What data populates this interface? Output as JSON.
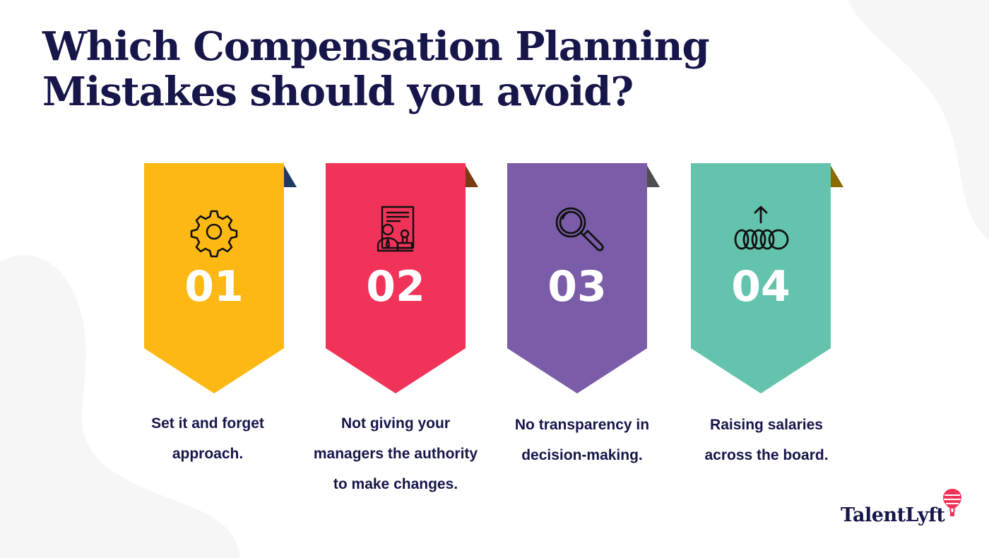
{
  "title": {
    "line1": "Which Compensation Planning",
    "line2": "Mistakes should you avoid?"
  },
  "steps": [
    {
      "number": "01",
      "icon": "gear-icon",
      "color": "#FDB813",
      "fold_color": "#1f3a63",
      "caption_lines": [
        "Set it and forget",
        "approach."
      ]
    },
    {
      "number": "02",
      "icon": "manager-document-stamp-icon",
      "color": "#F23359",
      "fold_color": "#7a3a12",
      "caption_lines": [
        "Not giving your",
        "managers the authority",
        "to make changes."
      ]
    },
    {
      "number": "03",
      "icon": "magnifying-glass-icon",
      "color": "#7B5CA8",
      "fold_color": "#4e4e52",
      "caption_lines": [
        "No transparency in",
        "decision-making."
      ]
    },
    {
      "number": "04",
      "icon": "coins-arrow-up-icon",
      "color": "#63C3AD",
      "fold_color": "#8a6d00",
      "caption_lines": [
        "Raising salaries",
        "across the board."
      ]
    }
  ],
  "logo": {
    "text": "TalentLyft",
    "balloon_color": "#F23359"
  }
}
